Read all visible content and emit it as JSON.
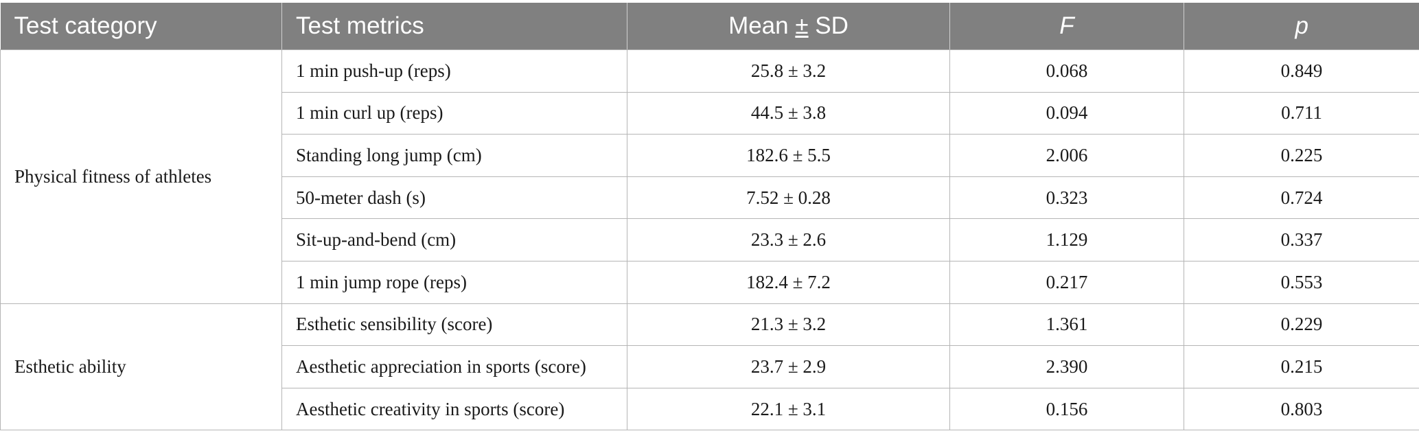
{
  "header": {
    "col_category": "Test category",
    "col_metrics": "Test metrics",
    "col_mean_prefix": "Mean ",
    "col_mean_pm": "±",
    "col_mean_suffix": " SD",
    "col_f": "F",
    "col_p": "p"
  },
  "groups": [
    {
      "category": "Physical fitness of athletes",
      "rows": [
        {
          "metric": "1 min push-up (reps)",
          "mean_sd": "25.8 ± 3.2",
          "f": "0.068",
          "p": "0.849"
        },
        {
          "metric": "1 min curl up (reps)",
          "mean_sd": "44.5 ± 3.8",
          "f": "0.094",
          "p": "0.711"
        },
        {
          "metric": "Standing long jump (cm)",
          "mean_sd": "182.6 ± 5.5",
          "f": "2.006",
          "p": "0.225"
        },
        {
          "metric": "50-meter dash (s)",
          "mean_sd": "7.52 ± 0.28",
          "f": "0.323",
          "p": "0.724"
        },
        {
          "metric": "Sit-up-and-bend (cm)",
          "mean_sd": "23.3 ± 2.6",
          "f": "1.129",
          "p": "0.337"
        },
        {
          "metric": "1 min jump rope (reps)",
          "mean_sd": "182.4 ± 7.2",
          "f": "0.217",
          "p": "0.553"
        }
      ]
    },
    {
      "category": "Esthetic ability",
      "rows": [
        {
          "metric": "Esthetic sensibility (score)",
          "mean_sd": "21.3 ± 3.2",
          "f": "1.361",
          "p": "0.229"
        },
        {
          "metric": "Aesthetic appreciation in sports (score)",
          "mean_sd": "23.7 ± 2.9",
          "f": "2.390",
          "p": "0.215"
        },
        {
          "metric": "Aesthetic creativity in sports (score)",
          "mean_sd": "22.1 ± 3.1",
          "f": "0.156",
          "p": "0.803"
        }
      ]
    }
  ]
}
